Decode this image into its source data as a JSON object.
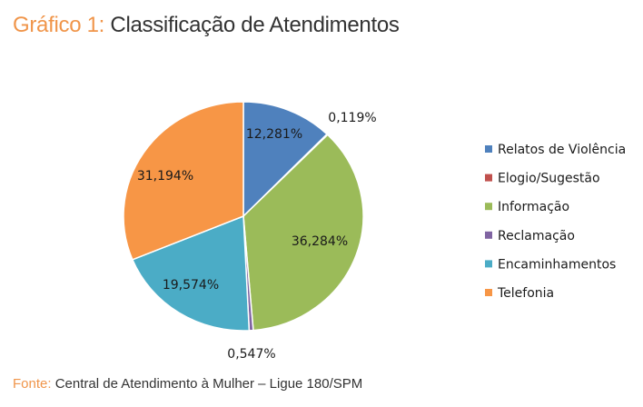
{
  "title": {
    "prefix": "Gráfico 1:",
    "text": "Classificação de Atendimentos"
  },
  "source": {
    "prefix": "Fonte:",
    "text": "Central de Atendimento à Mulher – Ligue 180/SPM"
  },
  "chart_data": {
    "type": "pie",
    "categories": [
      "Relatos de Violência",
      "Elogio/Sugestão",
      "Informação",
      "Reclamação",
      "Encaminhamentos",
      "Telefonia"
    ],
    "values": [
      12.281,
      0.119,
      36.284,
      0.547,
      19.574,
      31.194
    ],
    "labels": [
      "12,281%",
      "0,119%",
      "36,284%",
      "0,547%",
      "19,574%",
      "31,194%"
    ],
    "colors": [
      "#4f81bd",
      "#c0504d",
      "#9bbb59",
      "#8064a2",
      "#4bacc6",
      "#f79646"
    ],
    "legend": "right"
  }
}
